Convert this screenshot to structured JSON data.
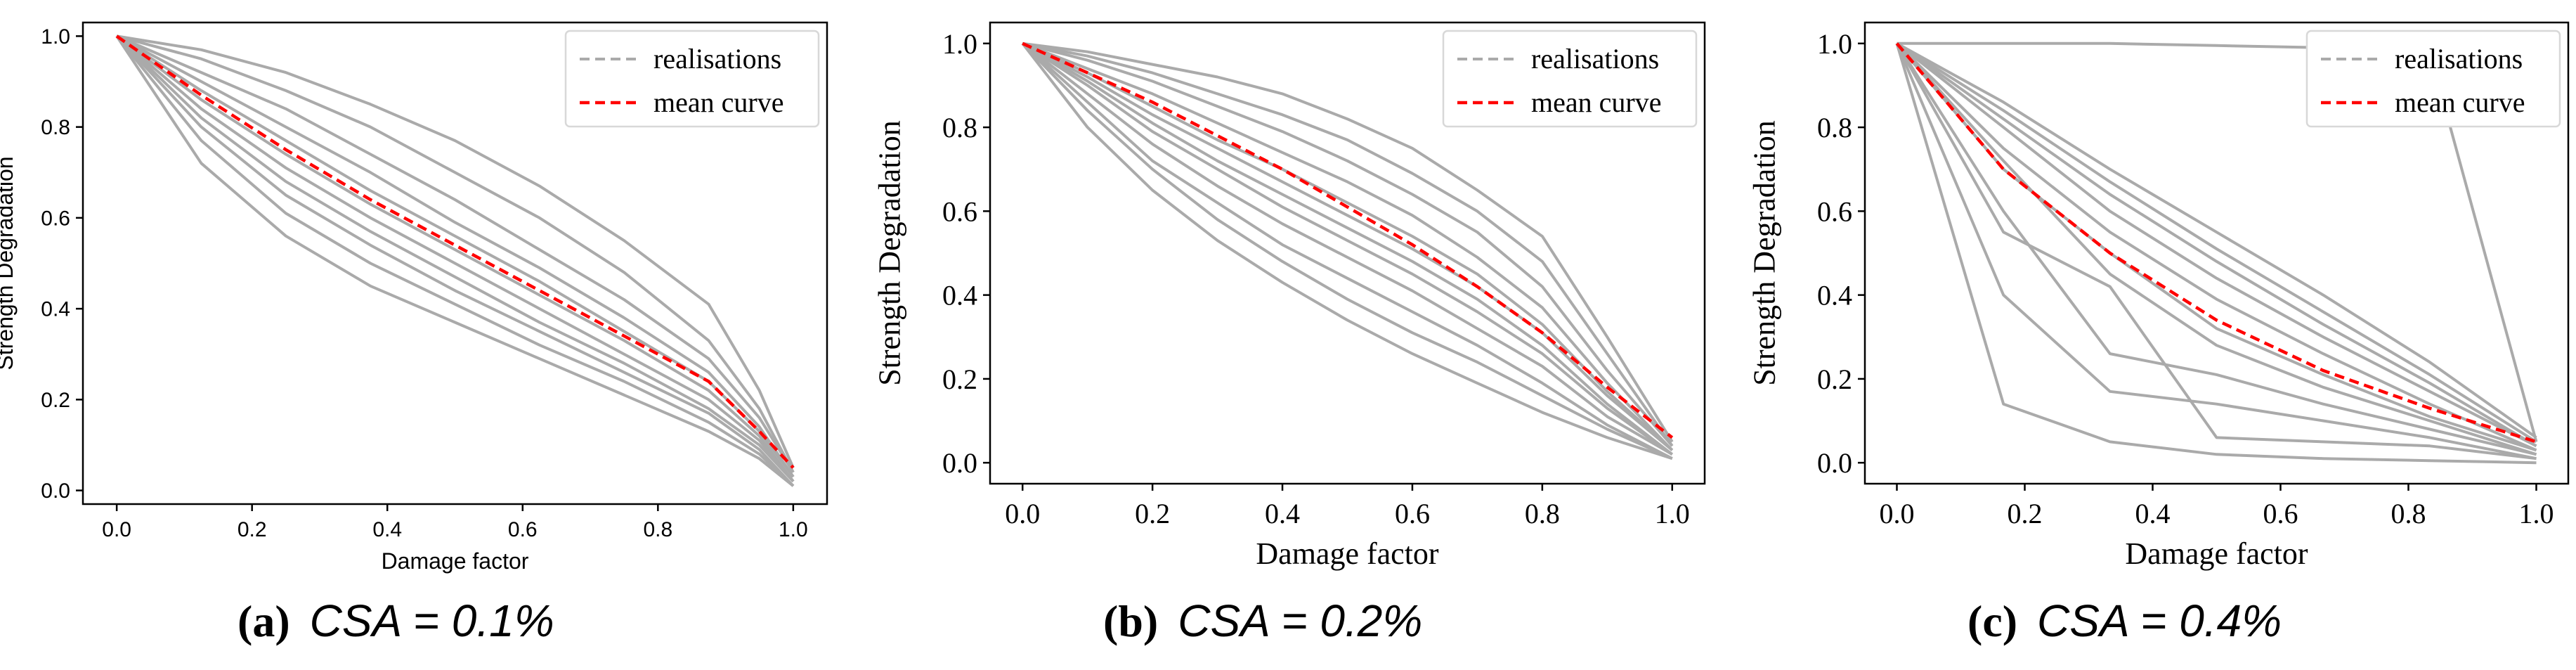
{
  "chart_data": [
    {
      "type": "line",
      "caption_label": "(a)",
      "caption_expr": "CSA = 0.1%",
      "title": "",
      "xlabel": "Damage factor",
      "ylabel": "Strength Degradation",
      "xlim": [
        -0.05,
        1.05
      ],
      "ylim": [
        -0.03,
        1.03
      ],
      "xticks": [
        "0.0",
        "0.2",
        "0.4",
        "0.6",
        "0.8",
        "1.0"
      ],
      "yticks": [
        "0.0",
        "0.2",
        "0.4",
        "0.6",
        "0.8",
        "1.0"
      ],
      "label_font": "sans",
      "legend": [
        "realisations",
        "mean curve"
      ],
      "legend_position": "top-right",
      "x": [
        0,
        0.125,
        0.25,
        0.375,
        0.5,
        0.625,
        0.75,
        0.875,
        0.95,
        1.0
      ],
      "series": [
        {
          "name": "realisations",
          "values": [
            1.0,
            0.97,
            0.92,
            0.85,
            0.77,
            0.67,
            0.55,
            0.41,
            0.22,
            0.05
          ]
        },
        {
          "name": "realisations",
          "values": [
            1.0,
            0.95,
            0.88,
            0.8,
            0.7,
            0.6,
            0.48,
            0.33,
            0.18,
            0.04
          ]
        },
        {
          "name": "realisations",
          "values": [
            1.0,
            0.92,
            0.84,
            0.74,
            0.64,
            0.53,
            0.42,
            0.29,
            0.16,
            0.04
          ]
        },
        {
          "name": "realisations",
          "values": [
            1.0,
            0.9,
            0.8,
            0.7,
            0.59,
            0.49,
            0.38,
            0.26,
            0.14,
            0.03
          ]
        },
        {
          "name": "realisations",
          "values": [
            1.0,
            0.88,
            0.77,
            0.66,
            0.56,
            0.46,
            0.35,
            0.24,
            0.13,
            0.03
          ]
        },
        {
          "name": "realisations",
          "values": [
            1.0,
            0.86,
            0.74,
            0.63,
            0.53,
            0.43,
            0.33,
            0.22,
            0.12,
            0.02
          ]
        },
        {
          "name": "realisations",
          "values": [
            1.0,
            0.84,
            0.71,
            0.6,
            0.5,
            0.4,
            0.3,
            0.2,
            0.11,
            0.02
          ]
        },
        {
          "name": "realisations",
          "values": [
            1.0,
            0.82,
            0.68,
            0.57,
            0.47,
            0.37,
            0.28,
            0.18,
            0.1,
            0.02
          ]
        },
        {
          "name": "realisations",
          "values": [
            1.0,
            0.8,
            0.65,
            0.54,
            0.44,
            0.35,
            0.26,
            0.17,
            0.09,
            0.01
          ]
        },
        {
          "name": "realisations",
          "values": [
            1.0,
            0.77,
            0.61,
            0.5,
            0.41,
            0.32,
            0.24,
            0.15,
            0.08,
            0.01
          ]
        },
        {
          "name": "realisations",
          "values": [
            1.0,
            0.72,
            0.56,
            0.45,
            0.37,
            0.29,
            0.21,
            0.13,
            0.07,
            0.01
          ]
        },
        {
          "name": "mean curve",
          "values": [
            1.0,
            0.87,
            0.75,
            0.64,
            0.54,
            0.44,
            0.34,
            0.24,
            0.13,
            0.05
          ]
        }
      ]
    },
    {
      "type": "line",
      "caption_label": "(b)",
      "caption_expr": "CSA = 0.2%",
      "title": "",
      "xlabel": "Damage factor",
      "ylabel": "Strength Degradation",
      "xlim": [
        -0.05,
        1.05
      ],
      "ylim": [
        -0.05,
        1.05
      ],
      "xticks": [
        "0.0",
        "0.2",
        "0.4",
        "0.6",
        "0.8",
        "1.0"
      ],
      "yticks": [
        "0.0",
        "0.2",
        "0.4",
        "0.6",
        "0.8",
        "1.0"
      ],
      "label_font": "serif",
      "legend": [
        "realisations",
        "mean curve"
      ],
      "legend_position": "top-right",
      "x": [
        0,
        0.1,
        0.2,
        0.3,
        0.4,
        0.5,
        0.6,
        0.7,
        0.8,
        0.9,
        1.0
      ],
      "series": [
        {
          "name": "realisations",
          "values": [
            1.0,
            0.98,
            0.95,
            0.92,
            0.88,
            0.82,
            0.75,
            0.65,
            0.54,
            0.3,
            0.05
          ]
        },
        {
          "name": "realisations",
          "values": [
            1.0,
            0.97,
            0.93,
            0.88,
            0.83,
            0.77,
            0.69,
            0.6,
            0.48,
            0.26,
            0.04
          ]
        },
        {
          "name": "realisations",
          "values": [
            1.0,
            0.96,
            0.91,
            0.85,
            0.79,
            0.72,
            0.64,
            0.55,
            0.42,
            0.22,
            0.04
          ]
        },
        {
          "name": "realisations",
          "values": [
            1.0,
            0.94,
            0.88,
            0.81,
            0.74,
            0.67,
            0.59,
            0.49,
            0.37,
            0.19,
            0.03
          ]
        },
        {
          "name": "realisations",
          "values": [
            1.0,
            0.93,
            0.85,
            0.77,
            0.7,
            0.62,
            0.54,
            0.45,
            0.33,
            0.17,
            0.03
          ]
        },
        {
          "name": "realisations",
          "values": [
            1.0,
            0.92,
            0.83,
            0.75,
            0.67,
            0.59,
            0.51,
            0.42,
            0.31,
            0.16,
            0.03
          ]
        },
        {
          "name": "realisations",
          "values": [
            1.0,
            0.91,
            0.81,
            0.72,
            0.64,
            0.56,
            0.48,
            0.39,
            0.28,
            0.14,
            0.02
          ]
        },
        {
          "name": "realisations",
          "values": [
            1.0,
            0.9,
            0.79,
            0.7,
            0.61,
            0.53,
            0.45,
            0.36,
            0.26,
            0.13,
            0.02
          ]
        },
        {
          "name": "realisations",
          "values": [
            1.0,
            0.88,
            0.76,
            0.66,
            0.57,
            0.49,
            0.41,
            0.32,
            0.23,
            0.11,
            0.02
          ]
        },
        {
          "name": "realisations",
          "values": [
            1.0,
            0.86,
            0.72,
            0.62,
            0.52,
            0.44,
            0.36,
            0.28,
            0.19,
            0.09,
            0.01
          ]
        },
        {
          "name": "realisations",
          "values": [
            1.0,
            0.84,
            0.7,
            0.58,
            0.48,
            0.39,
            0.31,
            0.24,
            0.16,
            0.08,
            0.01
          ]
        },
        {
          "name": "realisations",
          "values": [
            1.0,
            0.8,
            0.65,
            0.53,
            0.43,
            0.34,
            0.26,
            0.19,
            0.12,
            0.06,
            0.01
          ]
        },
        {
          "name": "mean curve",
          "values": [
            1.0,
            0.93,
            0.86,
            0.78,
            0.7,
            0.61,
            0.52,
            0.42,
            0.31,
            0.18,
            0.06
          ]
        }
      ]
    },
    {
      "type": "line",
      "caption_label": "(c)",
      "caption_expr": "CSA = 0.4%",
      "title": "",
      "xlabel": "Damage factor",
      "ylabel": "Strength Degradation",
      "xlim": [
        -0.05,
        1.05
      ],
      "ylim": [
        -0.05,
        1.05
      ],
      "xticks": [
        "0.0",
        "0.2",
        "0.4",
        "0.6",
        "0.8",
        "1.0"
      ],
      "yticks": [
        "0.0",
        "0.2",
        "0.4",
        "0.6",
        "0.8",
        "1.0"
      ],
      "label_font": "serif",
      "legend": [
        "realisations",
        "mean curve"
      ],
      "legend_position": "top-right",
      "x": [
        0,
        0.1667,
        0.3333,
        0.5,
        0.6667,
        0.8333,
        1.0
      ],
      "series": [
        {
          "name": "realisations",
          "values": [
            1.0,
            1.0,
            1.0,
            0.995,
            0.99,
            0.98,
            0.05
          ]
        },
        {
          "name": "realisations",
          "values": [
            1.0,
            0.86,
            0.7,
            0.55,
            0.4,
            0.24,
            0.06
          ]
        },
        {
          "name": "realisations",
          "values": [
            1.0,
            0.84,
            0.67,
            0.51,
            0.36,
            0.21,
            0.05
          ]
        },
        {
          "name": "realisations",
          "values": [
            1.0,
            0.82,
            0.64,
            0.48,
            0.33,
            0.19,
            0.04
          ]
        },
        {
          "name": "realisations",
          "values": [
            1.0,
            0.8,
            0.6,
            0.44,
            0.3,
            0.17,
            0.04
          ]
        },
        {
          "name": "realisations",
          "values": [
            1.0,
            0.75,
            0.55,
            0.39,
            0.26,
            0.14,
            0.03
          ]
        },
        {
          "name": "realisations",
          "values": [
            1.0,
            0.7,
            0.5,
            0.32,
            0.21,
            0.11,
            0.03
          ]
        },
        {
          "name": "realisations",
          "values": [
            1.0,
            0.72,
            0.45,
            0.28,
            0.18,
            0.1,
            0.02
          ]
        },
        {
          "name": "realisations",
          "values": [
            1.0,
            0.6,
            0.26,
            0.21,
            0.14,
            0.08,
            0.02
          ]
        },
        {
          "name": "realisations",
          "values": [
            1.0,
            0.55,
            0.42,
            0.06,
            0.05,
            0.04,
            0.01
          ]
        },
        {
          "name": "realisations",
          "values": [
            1.0,
            0.4,
            0.17,
            0.14,
            0.1,
            0.06,
            0.01
          ]
        },
        {
          "name": "realisations",
          "values": [
            1.0,
            0.14,
            0.05,
            0.02,
            0.01,
            0.005,
            0.0
          ]
        },
        {
          "name": "mean curve",
          "values": [
            1.0,
            0.7,
            0.5,
            0.34,
            0.22,
            0.13,
            0.05
          ]
        }
      ]
    }
  ]
}
